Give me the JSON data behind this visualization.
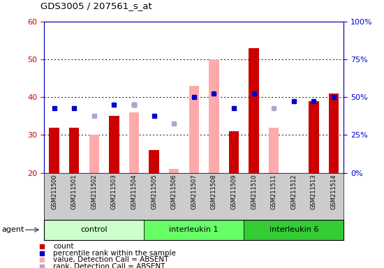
{
  "title": "GDS3005 / 207561_s_at",
  "samples": [
    "GSM211500",
    "GSM211501",
    "GSM211502",
    "GSM211503",
    "GSM211504",
    "GSM211505",
    "GSM211506",
    "GSM211507",
    "GSM211508",
    "GSM211509",
    "GSM211510",
    "GSM211511",
    "GSM211512",
    "GSM211513",
    "GSM211514"
  ],
  "groups": [
    {
      "label": "control",
      "color": "#ccffcc",
      "start": 0,
      "end": 5
    },
    {
      "label": "interleukin 1",
      "color": "#66ff66",
      "start": 5,
      "end": 10
    },
    {
      "label": "interleukin 6",
      "color": "#33cc33",
      "start": 10,
      "end": 15
    }
  ],
  "count_values": [
    32,
    32,
    null,
    35,
    null,
    26,
    null,
    null,
    null,
    31,
    53,
    null,
    null,
    39,
    41
  ],
  "rank_values": [
    37,
    37,
    null,
    38,
    38,
    35,
    null,
    40,
    41,
    37,
    41,
    null,
    39,
    39,
    40
  ],
  "value_absent": [
    null,
    null,
    30,
    null,
    36,
    null,
    21,
    43,
    50,
    null,
    null,
    32,
    null,
    null,
    null
  ],
  "rank_absent": [
    null,
    null,
    35,
    null,
    38,
    null,
    33,
    null,
    null,
    null,
    null,
    37,
    null,
    null,
    null
  ],
  "ylim_left": [
    20,
    60
  ],
  "ylim_right": [
    0,
    100
  ],
  "yticks_left": [
    20,
    30,
    40,
    50,
    60
  ],
  "yticks_right": [
    0,
    25,
    50,
    75,
    100
  ],
  "ytick_labels_right": [
    "0%",
    "25%",
    "50%",
    "75%",
    "100%"
  ],
  "bar_width": 0.5,
  "count_color": "#cc0000",
  "rank_color": "#0000cc",
  "value_absent_color": "#ffaaaa",
  "rank_absent_color": "#aaaacc",
  "plot_bg_color": "#ffffff",
  "tick_area_color": "#cccccc",
  "agent_label": "agent",
  "legend_labels": [
    "count",
    "percentile rank within the sample",
    "value, Detection Call = ABSENT",
    "rank, Detection Call = ABSENT"
  ],
  "legend_colors": [
    "#cc0000",
    "#0000cc",
    "#ffaaaa",
    "#aaaacc"
  ]
}
